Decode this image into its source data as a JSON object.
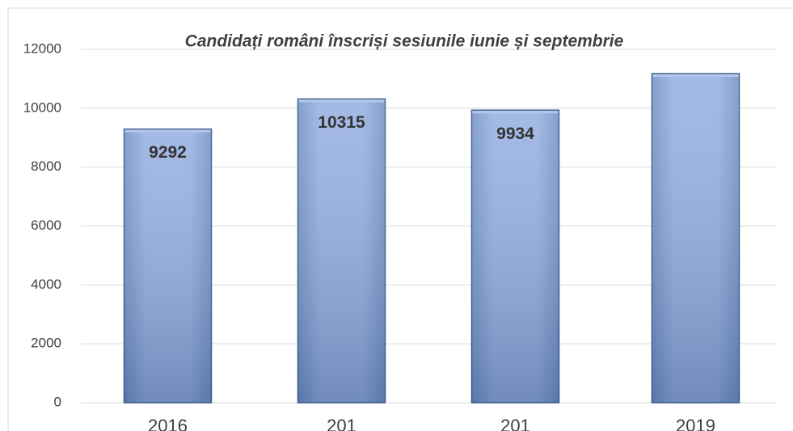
{
  "chart_data": {
    "type": "bar",
    "title": "Candidați români înscriși sesiunile iunie și septembrie",
    "categories": [
      "2016",
      "201",
      "201",
      "2019"
    ],
    "values": [
      9292,
      10315,
      9934,
      11176
    ],
    "value_labels": [
      "9292",
      "10315",
      "9934",
      null
    ],
    "color": "#8eaadb",
    "ylim": [
      0,
      12000
    ],
    "yticks": [
      0,
      2000,
      4000,
      6000,
      8000,
      10000,
      12000
    ],
    "grid": true
  }
}
